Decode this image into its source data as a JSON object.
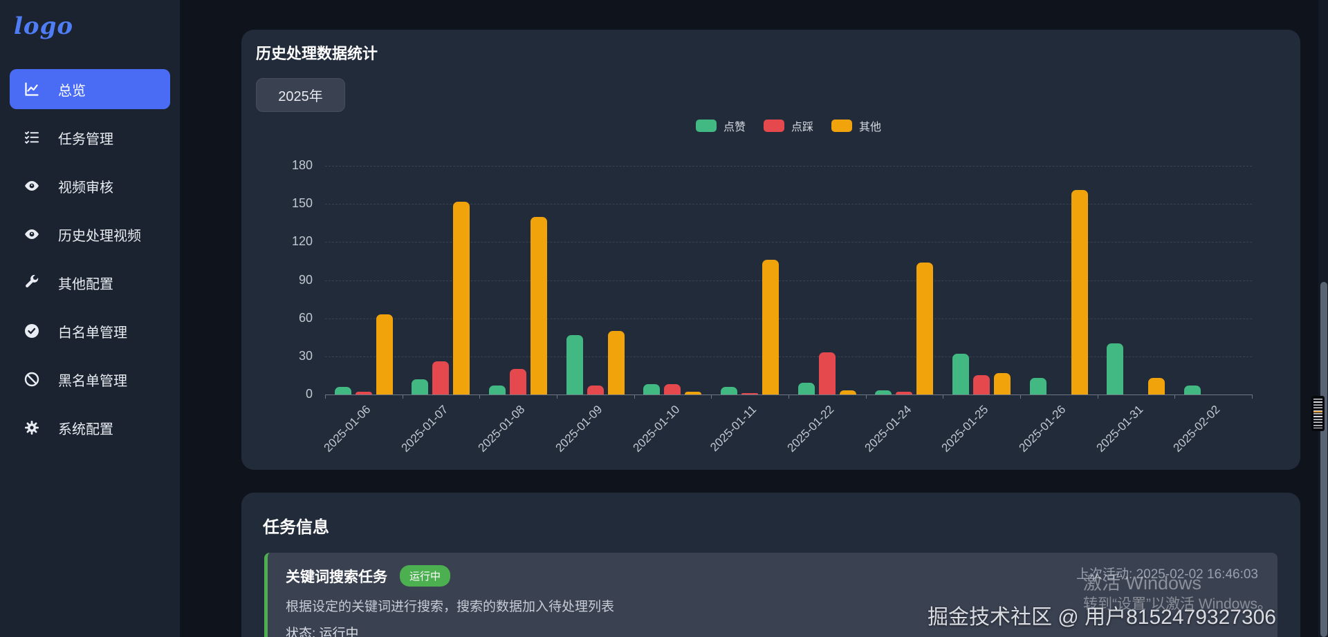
{
  "sidebar": {
    "logo_text": "logo",
    "items": [
      {
        "key": "overview",
        "label": "总览",
        "icon": "chart-line-icon",
        "active": true
      },
      {
        "key": "task-management",
        "label": "任务管理",
        "icon": "task-list-icon",
        "active": false
      },
      {
        "key": "video-review",
        "label": "视频审核",
        "icon": "eye-icon",
        "active": false
      },
      {
        "key": "history-videos",
        "label": "历史处理视频",
        "icon": "eye-icon",
        "active": false
      },
      {
        "key": "other-config",
        "label": "其他配置",
        "icon": "wrench-icon",
        "active": false
      },
      {
        "key": "whitelist",
        "label": "白名单管理",
        "icon": "check-circle-icon",
        "active": false
      },
      {
        "key": "blacklist",
        "label": "黑名单管理",
        "icon": "ban-icon",
        "active": false
      },
      {
        "key": "system-config",
        "label": "系统配置",
        "icon": "gear-icon",
        "active": false
      }
    ]
  },
  "chart_card": {
    "title": "历史处理数据统计",
    "year_selector": "2025年"
  },
  "chart_data": {
    "type": "bar",
    "title": "历史处理数据统计",
    "categories": [
      "2025-01-06",
      "2025-01-07",
      "2025-01-08",
      "2025-01-09",
      "2025-01-10",
      "2025-01-11",
      "2025-01-22",
      "2025-01-24",
      "2025-01-25",
      "2025-01-26",
      "2025-01-31",
      "2025-02-02"
    ],
    "series": [
      {
        "key": "likes",
        "name": "点赞",
        "color": "#42b883",
        "values": [
          6,
          12,
          7,
          47,
          8,
          6,
          9,
          3,
          32,
          13,
          40,
          7
        ]
      },
      {
        "key": "dislikes",
        "name": "点踩",
        "color": "#e5494d",
        "values": [
          2,
          26,
          20,
          7,
          8,
          1,
          33,
          2,
          15,
          0,
          0,
          0
        ]
      },
      {
        "key": "other",
        "name": "其他",
        "color": "#f0a30a",
        "values": [
          63,
          152,
          140,
          50,
          2,
          106,
          3,
          104,
          17,
          161,
          13,
          0
        ]
      }
    ],
    "ylim": [
      0,
      180
    ],
    "yticks": [
      0,
      30,
      60,
      90,
      120,
      150,
      180
    ],
    "grid": "dashed horizontal",
    "legend_position": "top-center"
  },
  "task_section": {
    "title": "任务信息",
    "task": {
      "name": "关键词搜索任务",
      "badge": "运行中",
      "description": "根据设定的关键词进行搜索，搜索的数据加入待处理列表",
      "status": "状态: 运行中",
      "last_activity": "上次活动: 2025-02-02 16:46:03"
    }
  },
  "watermarks": {
    "windows_line1": "激活 Windows",
    "windows_line2": "转到“设置”以激活 Windows。",
    "community": "掘金技术社区 @ 用户8152479327306"
  },
  "colors": {
    "accent": "#4a6cf5",
    "likes": "#42b883",
    "dislikes": "#e5494d",
    "other": "#f0a30a",
    "badge_running": "#4caf50"
  }
}
